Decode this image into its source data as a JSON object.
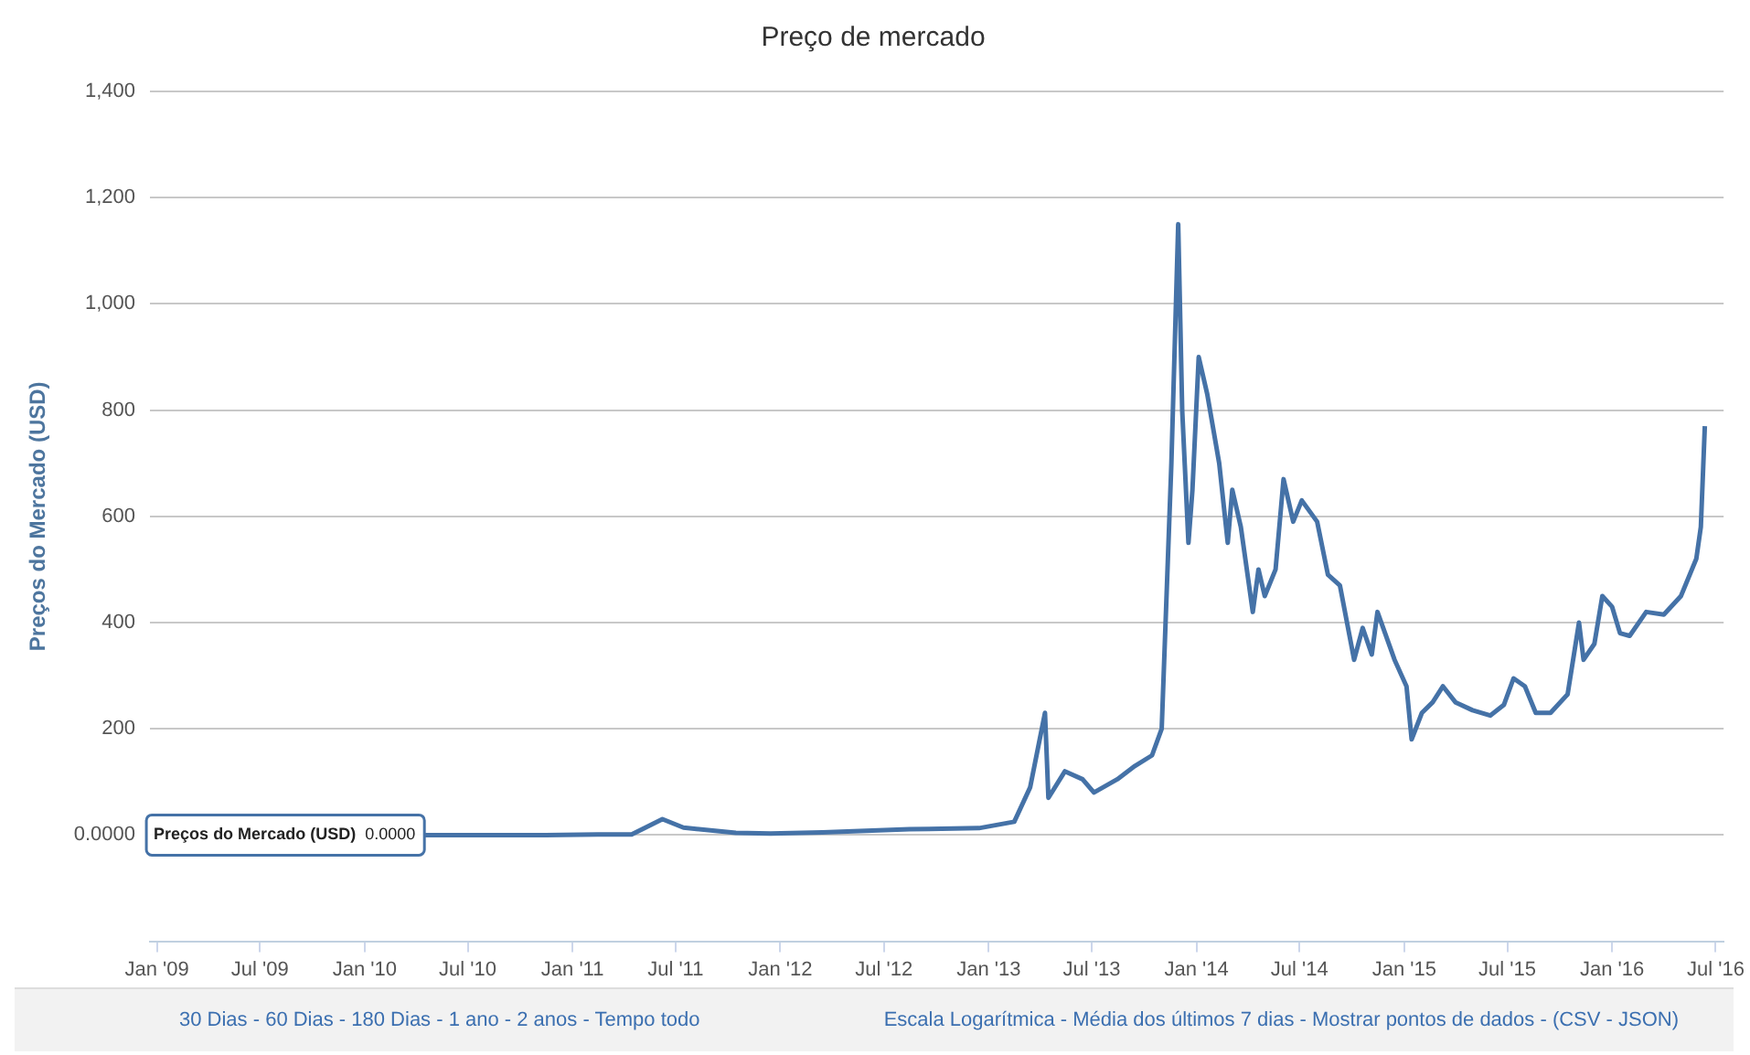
{
  "chart_data": {
    "type": "line",
    "title": "Preço de mercado",
    "ylabel": "Preços do Mercado (USD)",
    "xlim": [
      "2008-12-20",
      "2016-07-15"
    ],
    "xticks": [
      {
        "value": "2009-01",
        "label": "Jan '09"
      },
      {
        "value": "2009-07",
        "label": "Jul '09"
      },
      {
        "value": "2010-01",
        "label": "Jan '10"
      },
      {
        "value": "2010-07",
        "label": "Jul '10"
      },
      {
        "value": "2011-01",
        "label": "Jan '11"
      },
      {
        "value": "2011-07",
        "label": "Jul '11"
      },
      {
        "value": "2012-01",
        "label": "Jan '12"
      },
      {
        "value": "2012-07",
        "label": "Jul '12"
      },
      {
        "value": "2013-01",
        "label": "Jan '13"
      },
      {
        "value": "2013-07",
        "label": "Jul '13"
      },
      {
        "value": "2014-01",
        "label": "Jan '14"
      },
      {
        "value": "2014-07",
        "label": "Jul '14"
      },
      {
        "value": "2015-01",
        "label": "Jan '15"
      },
      {
        "value": "2015-07",
        "label": "Jul '15"
      },
      {
        "value": "2016-01",
        "label": "Jan '16"
      },
      {
        "value": "2016-07",
        "label": "Jul '16"
      }
    ],
    "ylim": [
      -200,
      1400
    ],
    "yticks": [
      {
        "value": 0,
        "label": "0.0000"
      },
      200,
      400,
      600,
      800,
      {
        "value": 1000,
        "label": "1,000"
      },
      {
        "value": 1200,
        "label": "1,200"
      },
      {
        "value": 1400,
        "label": "1,400"
      }
    ],
    "grid": "y",
    "legend": false,
    "marker": "none",
    "line_style": "solid",
    "series": [
      {
        "name": "Preços do Mercado (USD)",
        "color": "#4572a7",
        "x": [
          "2010-04-15",
          "2010-07-15",
          "2010-11-15",
          "2011-02-15",
          "2011-04-15",
          "2011-06-08",
          "2011-07-15",
          "2011-10-15",
          "2011-12-15",
          "2012-03-15",
          "2012-08-15",
          "2012-12-15",
          "2013-02-15",
          "2013-03-15",
          "2013-04-10",
          "2013-04-16",
          "2013-05-15",
          "2013-06-15",
          "2013-07-05",
          "2013-08-15",
          "2013-09-15",
          "2013-10-15",
          "2013-11-01",
          "2013-11-18",
          "2013-11-30",
          "2013-12-07",
          "2013-12-18",
          "2013-12-25",
          "2014-01-05",
          "2014-01-20",
          "2014-02-10",
          "2014-02-25",
          "2014-03-05",
          "2014-03-20",
          "2014-04-10",
          "2014-04-20",
          "2014-05-01",
          "2014-05-20",
          "2014-06-03",
          "2014-06-20",
          "2014-07-05",
          "2014-08-01",
          "2014-08-20",
          "2014-09-10",
          "2014-10-05",
          "2014-10-20",
          "2014-11-05",
          "2014-11-15",
          "2014-12-15",
          "2015-01-05",
          "2015-01-14",
          "2015-02-01",
          "2015-02-20",
          "2015-03-10",
          "2015-04-01",
          "2015-05-01",
          "2015-06-01",
          "2015-06-25",
          "2015-07-12",
          "2015-08-01",
          "2015-08-20",
          "2015-09-15",
          "2015-10-15",
          "2015-11-04",
          "2015-11-12",
          "2015-12-01",
          "2015-12-15",
          "2016-01-01",
          "2016-01-15",
          "2016-02-01",
          "2016-03-01",
          "2016-04-01",
          "2016-05-01",
          "2016-05-28",
          "2016-06-05",
          "2016-06-12"
        ],
        "values": [
          0,
          0,
          0,
          1,
          1,
          30,
          14,
          4,
          3,
          5,
          11,
          13,
          25,
          90,
          230,
          70,
          120,
          105,
          80,
          105,
          130,
          150,
          200,
          700,
          1150,
          800,
          550,
          650,
          900,
          830,
          700,
          550,
          650,
          580,
          420,
          500,
          450,
          500,
          670,
          590,
          630,
          590,
          490,
          470,
          330,
          390,
          340,
          420,
          330,
          280,
          180,
          230,
          250,
          280,
          250,
          235,
          225,
          245,
          295,
          280,
          230,
          230,
          265,
          400,
          330,
          360,
          450,
          430,
          380,
          375,
          420,
          415,
          450,
          520,
          580,
          770
        ]
      }
    ],
    "annotations": [
      "0.0000",
      "30 Dias - 60 Dias - 180 Dias - 1 ano - 2 anos - Tempo todo",
      "Escala Logarítmica - Média dos últimos 7 dias - Mostrar pontos de dados - (CSV - JSON)"
    ]
  }
}
